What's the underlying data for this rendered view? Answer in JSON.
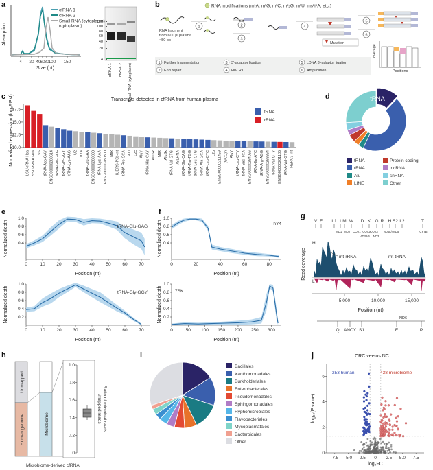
{
  "panels": {
    "a": {
      "label": "a",
      "ylabel": "Absorption",
      "xlabel": "Size (nt)",
      "xticks": [
        "4",
        "20",
        "40",
        "60",
        "80",
        "100",
        "150"
      ],
      "legend": [
        "cfRNA 1",
        "cfRNA 2",
        "Small RNA (cytoplasm)"
      ],
      "gel_ladder": [
        "150",
        "100",
        "80",
        "60",
        "40",
        "20",
        "4"
      ],
      "gel_lanes": [
        "cfRNA 1",
        "cfRNA 2",
        "Small RNA (cytoplasm)"
      ]
    },
    "b": {
      "label": "b",
      "modifications": "RNA modifications (m¹A, m¹G, m³C, m²₂G, m³U, ms²i⁶A, etc.)",
      "fragment_text": "RNA fragment from 600 µl plasma ~50 bp",
      "mutation": "Mutation",
      "coverage": "Coverage",
      "positions": "Positions",
      "steps": [
        "1",
        "2",
        "3",
        "4",
        "5",
        "6"
      ],
      "legend": [
        "Further fragmentation",
        "End repair",
        "3′-adaptor ligation",
        "HIV RT",
        "cDNA 3′-adaptor ligation",
        "Amplication"
      ]
    },
    "c": {
      "label": "c",
      "title": "Transcripts detected in cfRNA from human plasma",
      "ylabel": "Normalized expression (log₂RPM)",
      "yticks": [
        "10.0",
        "12.5",
        "15.0",
        "17.5"
      ],
      "legend": [
        "tRNA",
        "rRNA"
      ]
    },
    "d": {
      "label": "d",
      "center": "tRNA",
      "legend": [
        "tRNA",
        "Protein coding",
        "rRNA",
        "lncRNA",
        "Alu",
        "snRNA",
        "LINE",
        "Other"
      ]
    },
    "e": {
      "label": "e",
      "plots": [
        "tRNA-Glu-GAG",
        "tRNA-Gly-GGY"
      ],
      "ylabel": "Normalized depth",
      "xlabel": "Position (nt)",
      "xticks": [
        "0",
        "10",
        "20",
        "30",
        "40",
        "50",
        "60",
        "70"
      ],
      "yticks": [
        "0.2",
        "0.4",
        "0.6",
        "0.8",
        "1.0"
      ]
    },
    "f": {
      "label": "f",
      "plots": [
        "hY4",
        "7SK"
      ],
      "ylabel": "Normalized depth",
      "xlabel": "Position (nt)",
      "xticks_top": [
        "0",
        "20",
        "40",
        "60",
        "80"
      ],
      "xticks_bottom": [
        "0",
        "50",
        "100",
        "150",
        "200",
        "250",
        "300"
      ],
      "yticks": [
        "0.2",
        "0.4",
        "0.6",
        "0.8",
        "1.0"
      ]
    },
    "g": {
      "label": "g",
      "top_genes": [
        "V",
        "F",
        "L1",
        "I",
        "M",
        "W",
        "D",
        "K",
        "G",
        "R",
        "H",
        "S2",
        "L2",
        "T"
      ],
      "sub_genes": [
        "ND1",
        "ND2",
        "COX1",
        "COX2",
        "COX3",
        "ND4L/4",
        "ND5",
        "CYTB",
        "ATP8/6",
        "ND3"
      ],
      "ylabel": "Read coverage",
      "h": "H",
      "l": "L",
      "mt_rrna": "mt-rRNA",
      "mt_trna": "mt-tRNA",
      "xlabel": "Position (nt)",
      "xticks": [
        "5,000",
        "10,000",
        "15,000"
      ],
      "nd6": "ND6",
      "bottom_genes": [
        "Q",
        "ANCY",
        "S1",
        "E",
        "P"
      ]
    },
    "h": {
      "label": "h",
      "unmapped": "Unmapped",
      "human": "Human genome",
      "microbiome": "Microbiome",
      "ratio": "Ratio of microbial reads /mapped reads",
      "yticks": [
        "0",
        "0.2",
        "0.4",
        "0.6",
        "0.8",
        "1.0"
      ],
      "caption": "Microbiome-derived cfRNA"
    },
    "i": {
      "label": "i",
      "legend": [
        "Bacillales",
        "Xanthomonadales",
        "Burkholderiales",
        "Enterobacterales",
        "Pseudomonadales",
        "Sphingomonadales",
        "Hyphomicrobiales",
        "Flavobacteriales",
        "Mycoplasmatales",
        "Bacteroidales",
        "Other"
      ]
    },
    "j": {
      "label": "j",
      "title": "CRC versus NC",
      "human": "253 human",
      "microbiome": "438 microbiome",
      "ylabel": "log₁₀(P value)",
      "xlabel": "log₂FC",
      "xticks": [
        "-7.5",
        "-5.0",
        "-2.5",
        "0",
        "2.5",
        "5.0",
        "7.5"
      ],
      "yticks": [
        "0",
        "2",
        "4",
        "6"
      ]
    }
  },
  "chart_data": [
    {
      "type": "line",
      "panel": "c-bars",
      "title": "Transcripts detected in cfRNA from human plasma",
      "categories": [
        "LSU-rRNA Hsa",
        "SSU-rRNA Hsa",
        "5S",
        "tRNA-Asp-GAY",
        "ENSG00000280614",
        "tRNA-Glu-GAG",
        "tRNA-Gly-GGY",
        "tRNA-Lys-AAG",
        "U2",
        "hY4",
        "tRNA-Glu-GAA",
        "ENSG00000280800",
        "tRNA-Lys-AAA",
        "ENSG00000280800",
        "MIR",
        "HUERS-P3b-int",
        "tRNA-Pro-CCA",
        "Alu",
        "L2c",
        "AluY",
        "tRNA-His-CAY",
        "AluSx",
        "MIR",
        "AluSx",
        "tRNA-Val-GTG",
        "7SLRNA",
        "tRNA-Gln-CAG",
        "tRNA-Trp-TGG",
        "tRNA-Leu-CTG",
        "tRNA-Ala-GCA",
        "tRNA-Leu-CTC",
        "L2b",
        "ENSG00000211459",
        "(GCC)n",
        "AluY",
        "tRNA-Leu-CTY",
        "tRNA-Sec-TCA",
        "ENSG00000284066",
        "tRNA-Ile-ATC",
        "tRNA-Arg-AGG",
        "ENSG00000283364",
        "tRNA-Val-GTY",
        "ENSG00000201185",
        "tRNA-Val-GTG",
        "HERV3-int"
      ],
      "values": [
        18.3,
        17.2,
        16.6,
        14.4,
        14.1,
        13.9,
        13.6,
        13.3,
        13.2,
        13.1,
        13.0,
        12.9,
        12.8,
        12.7,
        12.6,
        12.5,
        12.4,
        12.3,
        12.2,
        12.1,
        12.0,
        11.95,
        11.9,
        11.85,
        11.8,
        11.75,
        11.7,
        11.65,
        11.6,
        11.55,
        11.5,
        11.45,
        11.4,
        11.35,
        11.3,
        11.28,
        11.25,
        11.22,
        11.2,
        11.18,
        11.15,
        11.12,
        11.1,
        11.08,
        11.05
      ],
      "kind": [
        "r",
        "r",
        "r",
        "t",
        "o",
        "t",
        "t",
        "t",
        "o",
        "o",
        "t",
        "o",
        "t",
        "o",
        "o",
        "o",
        "t",
        "o",
        "o",
        "o",
        "t",
        "o",
        "o",
        "o",
        "t",
        "o",
        "t",
        "t",
        "t",
        "t",
        "t",
        "o",
        "o",
        "o",
        "o",
        "t",
        "t",
        "o",
        "t",
        "t",
        "o",
        "t",
        "r",
        "t",
        "o"
      ],
      "ylim": [
        10,
        18.5
      ]
    },
    {
      "type": "pie",
      "panel": "d",
      "labels": [
        "tRNA",
        "rRNA",
        "Alu",
        "LINE",
        "Protein coding",
        "lncRNA",
        "snRNA",
        "Other"
      ],
      "values": [
        12,
        45,
        3,
        3,
        4,
        3,
        4,
        26
      ]
    },
    {
      "type": "pie",
      "panel": "i",
      "labels": [
        "Bacillales",
        "Xanthomonadales",
        "Burkholderiales",
        "Enterobacterales",
        "Pseudomonadales",
        "Sphingomonadales",
        "Hyphomicrobiales",
        "Flavobacteriales",
        "Mycoplasmatales",
        "Bacteroidales",
        "Other"
      ],
      "values": [
        16,
        14,
        13,
        6,
        5,
        4,
        4,
        3,
        3,
        2,
        30
      ]
    }
  ],
  "colors": {
    "blue": "#3a5fad",
    "red": "#d81f26",
    "gray": "#b5b5b5",
    "teal": "#4a9fb0",
    "navy": "#2a2366",
    "pie_d": [
      "#2a2366",
      "#3a5fad",
      "#1f8a87",
      "#f07f28",
      "#c0392b",
      "#b07cc6",
      "#83cfe0",
      "#7dcfcf"
    ],
    "pie_i": [
      "#2a2366",
      "#3a5fad",
      "#1a7b83",
      "#e8722a",
      "#e34a33",
      "#b07cc6",
      "#55b6e8",
      "#3a8ed0",
      "#7fd4c9",
      "#f0a090",
      "#dcdde2"
    ]
  }
}
